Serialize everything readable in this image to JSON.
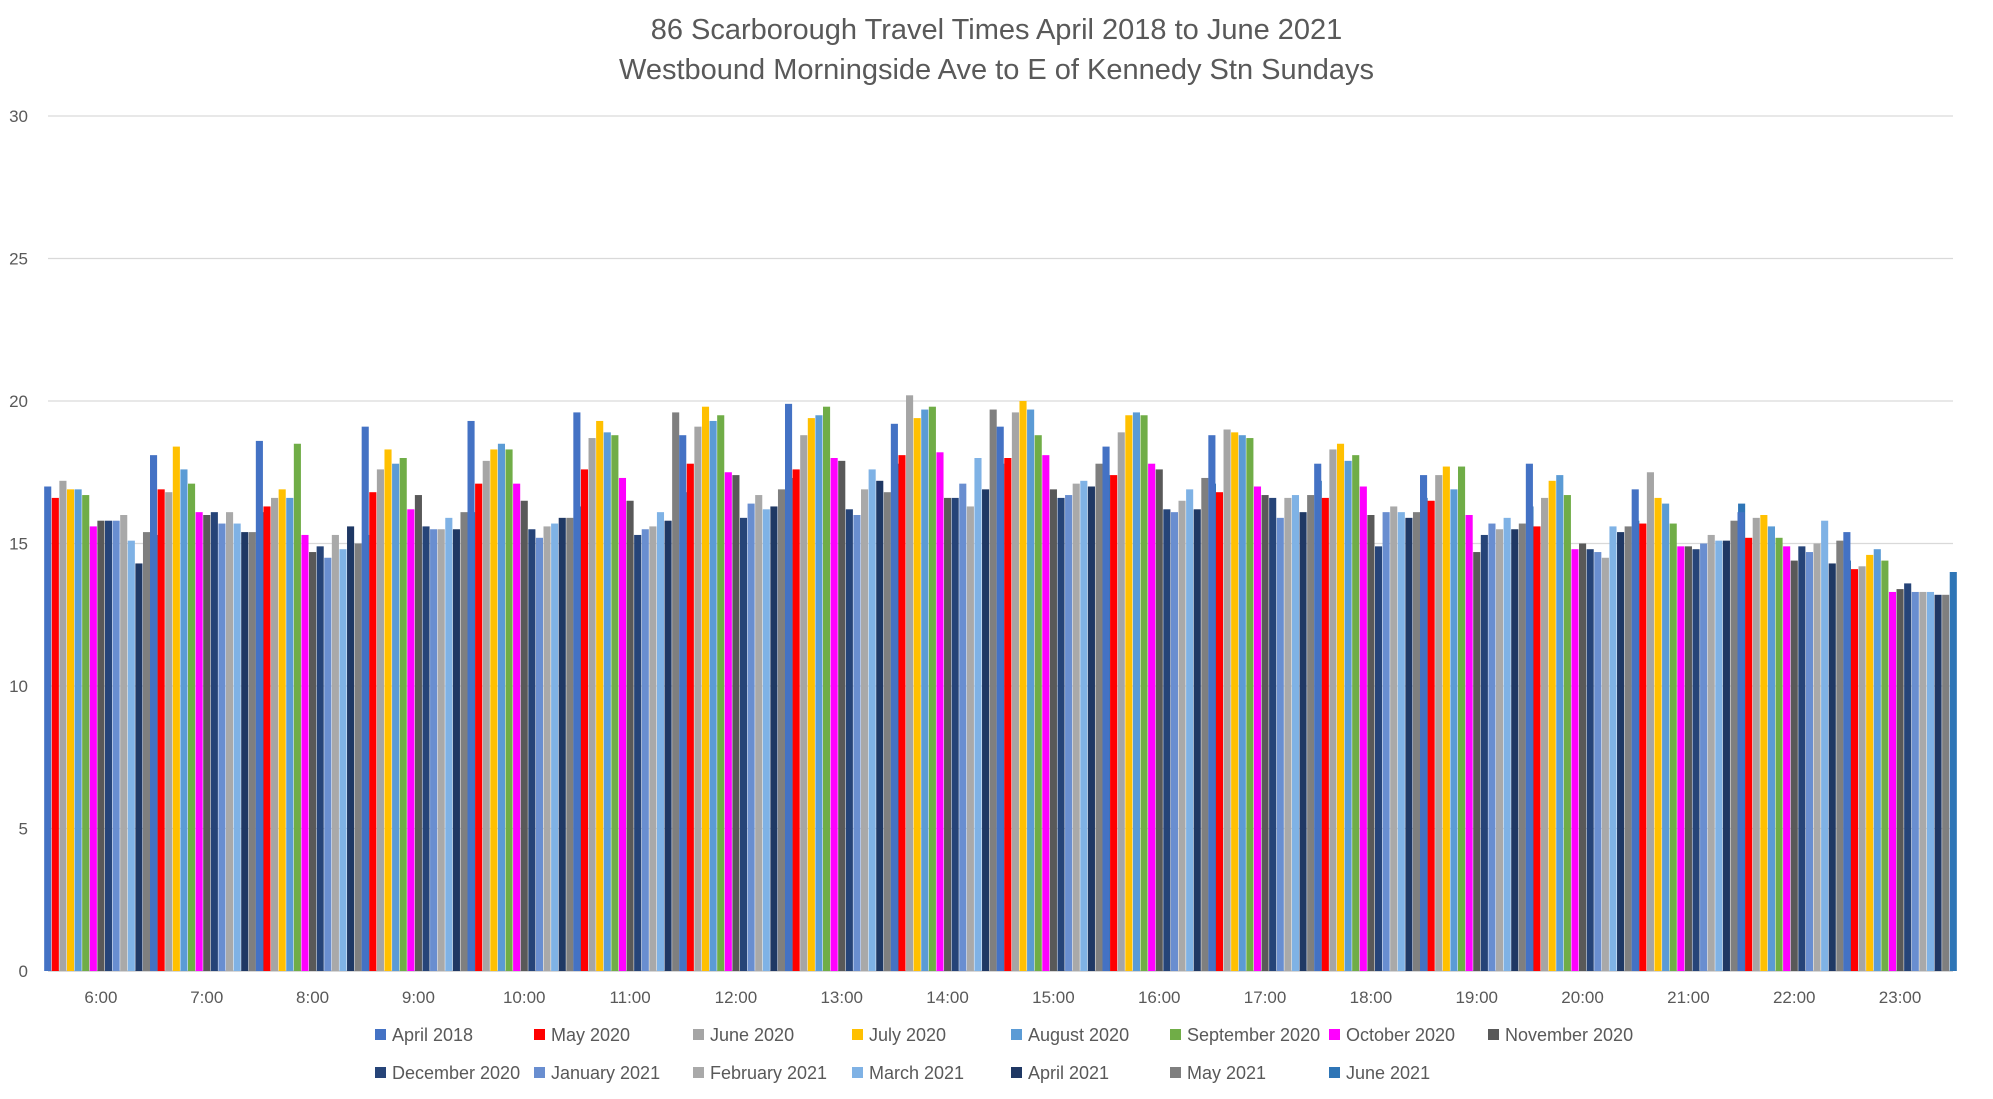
{
  "chart_data": {
    "type": "bar",
    "title_lines": [
      "86 Scarborough Travel Times April 2018 to June 2021",
      "Westbound Morningside Ave to E of Kennedy Stn Sundays"
    ],
    "ylim": [
      0,
      30
    ],
    "yticks": [
      0,
      5,
      10,
      15,
      20,
      25,
      30
    ],
    "grid": true,
    "legend_position": "bottom",
    "categories": [
      "6:00",
      "7:00",
      "8:00",
      "9:00",
      "10:00",
      "11:00",
      "12:00",
      "13:00",
      "14:00",
      "15:00",
      "16:00",
      "17:00",
      "18:00",
      "19:00",
      "20:00",
      "21:00",
      "22:00",
      "23:00"
    ],
    "series": [
      {
        "name": "April 2018",
        "color": "#4472C4",
        "values": [
          17.0,
          18.1,
          18.6,
          19.1,
          19.3,
          19.6,
          18.8,
          19.9,
          19.2,
          19.1,
          18.4,
          18.8,
          17.8,
          17.4,
          17.8,
          16.9,
          16.1,
          15.4
        ]
      },
      {
        "name": "May 2020",
        "color": "#FF0000",
        "values": [
          16.6,
          16.9,
          16.3,
          16.8,
          17.1,
          17.6,
          17.8,
          17.6,
          18.1,
          18.0,
          17.4,
          16.8,
          16.6,
          16.5,
          15.6,
          15.7,
          15.2,
          14.1
        ]
      },
      {
        "name": "June 2020",
        "color": "#A5A5A5",
        "values": [
          17.2,
          16.8,
          16.6,
          17.6,
          17.9,
          18.7,
          19.1,
          18.8,
          20.2,
          19.6,
          18.9,
          19.0,
          18.3,
          17.4,
          16.6,
          17.5,
          15.9,
          14.2
        ]
      },
      {
        "name": "July 2020",
        "color": "#FFC000",
        "values": [
          16.9,
          18.4,
          16.9,
          18.3,
          18.3,
          19.3,
          19.8,
          19.4,
          19.4,
          20.0,
          19.5,
          18.9,
          18.5,
          17.7,
          17.2,
          16.6,
          16.0,
          14.6
        ]
      },
      {
        "name": "August 2020",
        "color": "#5B9BD5",
        "values": [
          16.9,
          17.6,
          16.6,
          17.8,
          18.5,
          18.9,
          19.3,
          19.5,
          19.7,
          19.7,
          19.6,
          18.8,
          17.9,
          16.9,
          17.4,
          16.4,
          15.6,
          14.8
        ]
      },
      {
        "name": "September 2020",
        "color": "#70AD47",
        "values": [
          16.7,
          17.1,
          18.5,
          18.0,
          18.3,
          18.8,
          19.5,
          19.8,
          19.8,
          18.8,
          19.5,
          18.7,
          18.1,
          17.7,
          16.7,
          15.7,
          15.2,
          14.4
        ]
      },
      {
        "name": "October 2020",
        "color": "#FF00FF",
        "values": [
          15.6,
          16.1,
          15.3,
          16.2,
          17.1,
          17.3,
          17.5,
          18.0,
          18.2,
          18.1,
          17.8,
          17.0,
          17.0,
          16.0,
          14.8,
          14.9,
          14.9,
          13.3
        ]
      },
      {
        "name": "November 2020",
        "color": "#595959",
        "values": [
          15.8,
          16.0,
          14.7,
          16.7,
          16.5,
          16.5,
          17.4,
          17.9,
          16.6,
          16.9,
          17.6,
          16.7,
          16.0,
          14.7,
          15.0,
          14.9,
          14.4,
          13.4
        ]
      },
      {
        "name": "December 2020",
        "color": "#264478",
        "values": [
          15.8,
          16.1,
          14.9,
          15.6,
          15.5,
          15.3,
          15.9,
          16.2,
          16.6,
          16.6,
          16.2,
          16.6,
          14.9,
          15.3,
          14.8,
          14.8,
          14.9,
          13.6
        ]
      },
      {
        "name": "January 2021",
        "color": "#698ED0",
        "values": [
          15.8,
          15.7,
          14.5,
          15.5,
          15.2,
          15.5,
          16.4,
          16.0,
          17.1,
          16.7,
          16.1,
          15.9,
          16.1,
          15.7,
          14.7,
          15.0,
          14.7,
          13.3
        ]
      },
      {
        "name": "February 2021",
        "color": "#A9A9A9",
        "values": [
          16.0,
          16.1,
          15.3,
          15.5,
          15.6,
          15.6,
          16.7,
          16.9,
          16.3,
          17.1,
          16.5,
          16.6,
          16.3,
          15.5,
          14.5,
          15.3,
          15.0,
          13.3
        ]
      },
      {
        "name": "March 2021",
        "color": "#7FB2E5",
        "values": [
          15.1,
          15.7,
          14.8,
          15.9,
          15.7,
          16.1,
          16.2,
          17.6,
          18.0,
          17.2,
          16.9,
          16.7,
          16.1,
          15.9,
          15.6,
          15.1,
          15.8,
          13.3
        ]
      },
      {
        "name": "April 2021",
        "color": "#1F3864",
        "values": [
          14.3,
          15.4,
          15.6,
          15.5,
          15.9,
          15.8,
          16.3,
          17.2,
          16.9,
          17.0,
          16.2,
          16.1,
          15.9,
          15.5,
          15.4,
          15.1,
          14.3,
          13.2
        ]
      },
      {
        "name": "May 2021",
        "color": "#7F7F7F",
        "values": [
          15.4,
          15.4,
          15.0,
          16.1,
          15.9,
          19.6,
          16.9,
          16.8,
          19.7,
          17.8,
          17.3,
          16.7,
          16.1,
          15.7,
          15.6,
          15.8,
          15.1,
          13.2
        ]
      },
      {
        "name": "June 2021",
        "color": "#2E75B6",
        "values": [
          15.3,
          16.1,
          15.3,
          16.1,
          16.3,
          16.8,
          17.3,
          17.8,
          17.8,
          17.4,
          17.1,
          17.2,
          16.6,
          16.3,
          15.8,
          16.4,
          14.4,
          14.0
        ]
      }
    ]
  }
}
